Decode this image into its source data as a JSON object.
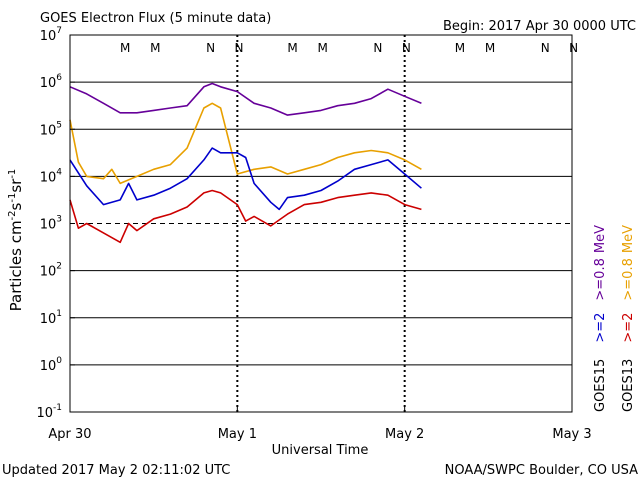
{
  "chart_data": {
    "type": "line",
    "title": "GOES Electron Flux (5 minute data)",
    "begin_label": "Begin: 2017 Apr 30 0000 UTC",
    "xlabel": "Universal Time",
    "ylabel_parts": {
      "base": "Particles cm",
      "e1": "-2",
      "s": "s",
      "e2": "-1",
      "sr": "sr",
      "e3": "-1"
    },
    "footer_left": "Updated 2017 May  2 02:11:02 UTC",
    "footer_right": "NOAA/SWPC Boulder, CO USA",
    "x_unit": "days since 2017 Apr 30 0000 UTC",
    "xlim": [
      0,
      3
    ],
    "ylim_log10": [
      -1,
      7
    ],
    "y_scale": "log",
    "x_ticks": [
      {
        "value": 0,
        "label": "Apr 30"
      },
      {
        "value": 1,
        "label": "May 1"
      },
      {
        "value": 2,
        "label": "May 2"
      },
      {
        "value": 3,
        "label": "May 3"
      }
    ],
    "y_ticks": [
      {
        "exp": 7,
        "base": "10",
        "sup": "7"
      },
      {
        "exp": 6,
        "base": "10",
        "sup": "6"
      },
      {
        "exp": 5,
        "base": "10",
        "sup": "5"
      },
      {
        "exp": 4,
        "base": "10",
        "sup": "4"
      },
      {
        "exp": 3,
        "base": "10",
        "sup": "3"
      },
      {
        "exp": 2,
        "base": "10",
        "sup": "2"
      },
      {
        "exp": 1,
        "base": "10",
        "sup": "1"
      },
      {
        "exp": 0,
        "base": "10",
        "sup": "0"
      },
      {
        "exp": -1,
        "base": "10",
        "sup": "-1"
      }
    ],
    "threshold_log10": 3,
    "marker_colors": {
      "GOES13": "#cc0000",
      "GOES15": "#0000cc"
    },
    "markers": [
      {
        "label": "M",
        "day": 0.33,
        "sat": "GOES13"
      },
      {
        "label": "M",
        "day": 0.51,
        "sat": "GOES15"
      },
      {
        "label": "N",
        "day": 0.84,
        "sat": "GOES13"
      },
      {
        "label": "N",
        "day": 1.01,
        "sat": "GOES15"
      },
      {
        "label": "M",
        "day": 1.33,
        "sat": "GOES13"
      },
      {
        "label": "M",
        "day": 1.51,
        "sat": "GOES15"
      },
      {
        "label": "N",
        "day": 1.84,
        "sat": "GOES13"
      },
      {
        "label": "N",
        "day": 2.01,
        "sat": "GOES15"
      },
      {
        "label": "M",
        "day": 2.33,
        "sat": "GOES13"
      },
      {
        "label": "M",
        "day": 2.51,
        "sat": "GOES15"
      },
      {
        "label": "N",
        "day": 2.84,
        "sat": "GOES13"
      },
      {
        "label": "N",
        "day": 3.01,
        "sat": "GOES15"
      }
    ],
    "legend_position": "right, rotated",
    "legend": [
      {
        "sat": "GOES13",
        "energy": ">=2",
        "energy2": ">=0.8",
        "unit": "MeV",
        "color2": "#cc0000",
        "color08": "#e8a000"
      },
      {
        "sat": "GOES15",
        "energy": ">=2",
        "energy2": ">=0.8",
        "unit": "MeV",
        "color2": "#0000cc",
        "color08": "#660099"
      }
    ],
    "series": [
      {
        "name": "GOES15 >=0.8 MeV",
        "color": "#660099",
        "x": [
          0.0,
          0.1,
          0.2,
          0.3,
          0.4,
          0.5,
          0.6,
          0.7,
          0.8,
          0.85,
          0.9,
          1.0,
          1.1,
          1.2,
          1.3,
          1.4,
          1.5,
          1.6,
          1.7,
          1.8,
          1.9,
          2.0,
          2.1
        ],
        "log10": [
          5.9,
          5.75,
          5.55,
          5.35,
          5.35,
          5.4,
          5.45,
          5.5,
          5.9,
          5.97,
          5.9,
          5.8,
          5.55,
          5.45,
          5.3,
          5.35,
          5.4,
          5.5,
          5.55,
          5.65,
          5.85,
          5.7,
          5.55
        ]
      },
      {
        "name": "GOES13 >=0.8 MeV",
        "color": "#e8a000",
        "x": [
          0.0,
          0.05,
          0.1,
          0.2,
          0.25,
          0.3,
          0.4,
          0.5,
          0.6,
          0.7,
          0.8,
          0.85,
          0.9,
          1.0,
          1.1,
          1.2,
          1.3,
          1.4,
          1.5,
          1.6,
          1.7,
          1.8,
          1.9,
          2.0,
          2.1
        ],
        "log10": [
          5.2,
          4.3,
          4.0,
          3.95,
          4.15,
          3.85,
          4.0,
          4.15,
          4.25,
          4.6,
          5.45,
          5.55,
          5.45,
          4.05,
          4.15,
          4.2,
          4.05,
          4.15,
          4.25,
          4.4,
          4.5,
          4.55,
          4.5,
          4.35,
          4.15
        ]
      },
      {
        "name": "GOES15 >=2 MeV",
        "color": "#0000cc",
        "x": [
          0.0,
          0.1,
          0.2,
          0.3,
          0.35,
          0.4,
          0.5,
          0.6,
          0.7,
          0.8,
          0.85,
          0.9,
          1.0,
          1.05,
          1.1,
          1.2,
          1.25,
          1.3,
          1.4,
          1.5,
          1.6,
          1.7,
          1.8,
          1.9,
          2.0,
          2.1
        ],
        "log10": [
          4.35,
          3.8,
          3.4,
          3.5,
          3.85,
          3.5,
          3.6,
          3.75,
          3.95,
          4.35,
          4.6,
          4.5,
          4.5,
          4.4,
          3.85,
          3.45,
          3.3,
          3.55,
          3.6,
          3.7,
          3.9,
          4.15,
          4.25,
          4.35,
          4.05,
          3.75
        ]
      },
      {
        "name": "GOES13 >=2 MeV",
        "color": "#cc0000",
        "x": [
          0.0,
          0.05,
          0.1,
          0.2,
          0.3,
          0.35,
          0.4,
          0.5,
          0.6,
          0.7,
          0.8,
          0.85,
          0.9,
          1.0,
          1.05,
          1.1,
          1.2,
          1.3,
          1.4,
          1.5,
          1.6,
          1.7,
          1.8,
          1.9,
          2.0,
          2.1
        ],
        "log10": [
          3.5,
          2.9,
          3.0,
          2.8,
          2.6,
          3.0,
          2.85,
          3.1,
          3.2,
          3.35,
          3.65,
          3.7,
          3.65,
          3.4,
          3.05,
          3.15,
          2.95,
          3.2,
          3.4,
          3.45,
          3.55,
          3.6,
          3.65,
          3.6,
          3.4,
          3.3
        ]
      }
    ]
  }
}
